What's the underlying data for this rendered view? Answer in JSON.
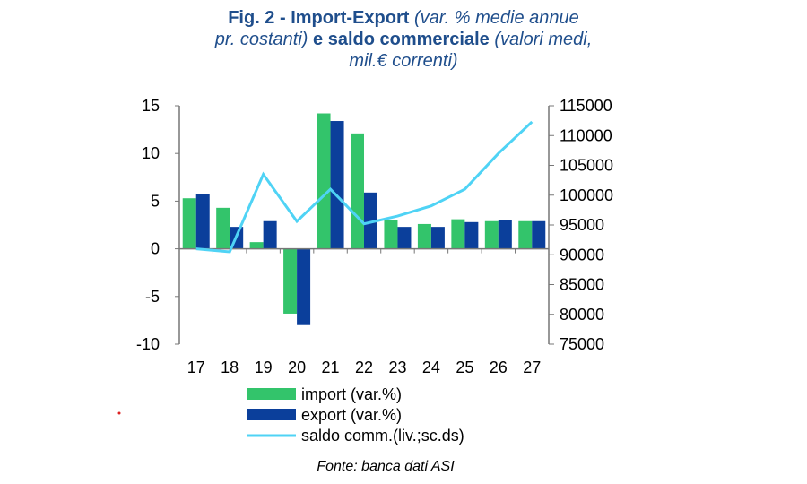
{
  "chart_data": {
    "type": "bar+line",
    "title": {
      "bold1": "Fig. 2 - Import-Export",
      "ital1": " (var. % medie annue",
      "ital2": "pr. costanti)",
      "bold2": " e saldo commerciale",
      "ital3": " (valori medi,",
      "ital4": "mil.€ correnti)"
    },
    "categories": [
      "17",
      "18",
      "19",
      "20",
      "21",
      "22",
      "23",
      "24",
      "25",
      "26",
      "27"
    ],
    "series": [
      {
        "name": "import (var.%)",
        "type": "bar",
        "axis": "left",
        "color": "#33c46b",
        "values": [
          5.3,
          4.3,
          0.7,
          -6.8,
          14.2,
          12.1,
          3.0,
          2.6,
          3.1,
          2.9,
          2.9
        ]
      },
      {
        "name": "export (var.%)",
        "type": "bar",
        "axis": "left",
        "color": "#0b3f9b",
        "values": [
          5.7,
          2.3,
          2.9,
          -8.0,
          13.4,
          5.9,
          2.3,
          2.3,
          2.8,
          3.0,
          2.9
        ]
      },
      {
        "name": "saldo comm.(liv.;sc.ds)",
        "type": "line",
        "axis": "right",
        "color": "#4fd3f5",
        "values": [
          91000,
          90500,
          103500,
          95600,
          101000,
          95200,
          96500,
          98200,
          101000,
          107000,
          112300
        ]
      }
    ],
    "left_axis": {
      "ylim": [
        -10,
        15
      ],
      "ticks": [
        "15",
        "10",
        "5",
        "0",
        "-5",
        "-10"
      ]
    },
    "right_axis": {
      "ylim": [
        75000,
        115000
      ],
      "ticks": [
        "115000",
        "110000",
        "105000",
        "100000",
        "95000",
        "90000",
        "85000",
        "80000",
        "75000"
      ]
    },
    "legend": "bottom",
    "source": "Fonte: banca dati ASI"
  }
}
